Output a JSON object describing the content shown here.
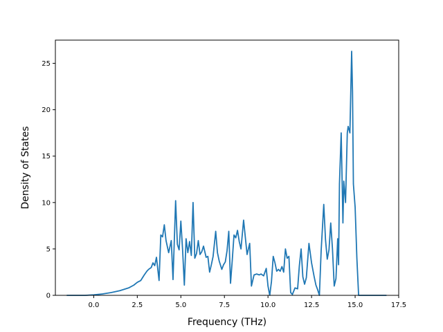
{
  "chart_data": {
    "type": "line",
    "title": "",
    "xlabel": "Frequency (THz)",
    "ylabel": "Density of States",
    "xlim": [
      -2.2,
      17.5
    ],
    "ylim": [
      0,
      27.5
    ],
    "xticks": [
      0.0,
      2.5,
      5.0,
      7.5,
      10.0,
      12.5,
      15.0,
      17.5
    ],
    "xtick_labels": [
      "0.0",
      "2.5",
      "5.0",
      "7.5",
      "10.0",
      "12.5",
      "15.0",
      "17.5"
    ],
    "yticks": [
      0,
      5,
      10,
      15,
      20,
      25
    ],
    "ytick_labels": [
      "0",
      "5",
      "10",
      "15",
      "20",
      "25"
    ],
    "grid": false,
    "legend": "none",
    "series": [
      {
        "color": "#1f77b4",
        "x": [
          -1.55,
          -0.5,
          0.0,
          0.5,
          1.0,
          1.5,
          2.0,
          2.3,
          2.5,
          2.7,
          2.9,
          3.05,
          3.15,
          3.3,
          3.4,
          3.5,
          3.6,
          3.75,
          3.85,
          3.95,
          4.05,
          4.15,
          4.3,
          4.45,
          4.55,
          4.7,
          4.8,
          4.9,
          5.0,
          5.1,
          5.2,
          5.3,
          5.4,
          5.5,
          5.6,
          5.7,
          5.8,
          5.9,
          6.0,
          6.1,
          6.2,
          6.3,
          6.45,
          6.55,
          6.65,
          6.75,
          6.85,
          7.0,
          7.1,
          7.2,
          7.35,
          7.45,
          7.55,
          7.65,
          7.75,
          7.85,
          7.95,
          8.05,
          8.15,
          8.25,
          8.35,
          8.45,
          8.6,
          8.8,
          8.95,
          9.05,
          9.2,
          9.35,
          9.5,
          9.6,
          9.75,
          9.9,
          10.0,
          10.1,
          10.2,
          10.3,
          10.4,
          10.5,
          10.6,
          10.7,
          10.8,
          10.9,
          11.0,
          11.1,
          11.2,
          11.3,
          11.4,
          11.55,
          11.7,
          11.8,
          11.9,
          12.0,
          12.1,
          12.2,
          12.35,
          12.5,
          12.65,
          12.75,
          12.85,
          12.95,
          13.05,
          13.2,
          13.3,
          13.4,
          13.5,
          13.6,
          13.7,
          13.8,
          13.9,
          14.0,
          14.05,
          14.1,
          14.2,
          14.3,
          14.35,
          14.45,
          14.55,
          14.6,
          14.7,
          14.8,
          14.85,
          14.9,
          15.0,
          15.1,
          15.2,
          15.3,
          15.4,
          16.0,
          16.8
        ],
        "y": [
          0,
          0,
          0.05,
          0.15,
          0.3,
          0.5,
          0.8,
          1.1,
          1.4,
          1.6,
          2.2,
          2.6,
          2.8,
          3.0,
          3.5,
          3.2,
          4.1,
          1.6,
          6.5,
          6.3,
          7.6,
          5.9,
          4.6,
          5.9,
          1.7,
          10.2,
          5.5,
          4.9,
          8.0,
          4.9,
          1.1,
          6.1,
          4.6,
          5.8,
          4.3,
          10.0,
          4.0,
          4.5,
          5.9,
          4.4,
          4.7,
          5.3,
          4.1,
          4.2,
          2.5,
          3.3,
          4.2,
          6.9,
          4.6,
          3.7,
          2.8,
          3.3,
          3.6,
          4.8,
          6.9,
          1.3,
          3.8,
          6.5,
          6.2,
          7.0,
          5.8,
          5.0,
          8.1,
          4.4,
          5.6,
          1.0,
          2.2,
          2.3,
          2.2,
          2.3,
          2.1,
          2.9,
          1.0,
          0.0,
          1.5,
          4.2,
          3.5,
          2.6,
          2.8,
          2.6,
          3.1,
          2.5,
          5.0,
          4.0,
          4.2,
          0.3,
          0.1,
          0.8,
          0.7,
          3.2,
          5.0,
          2.0,
          1.2,
          1.9,
          5.6,
          3.5,
          2.0,
          1.1,
          0.6,
          0.0,
          4.8,
          9.8,
          6.0,
          3.9,
          4.9,
          7.8,
          5.0,
          1.0,
          1.8,
          6.1,
          3.3,
          12.0,
          17.5,
          7.8,
          12.3,
          10.0,
          17.5,
          18.2,
          17.5,
          26.3,
          22.0,
          12.0,
          9.5,
          4.0,
          0.0,
          0.0,
          0.0,
          0.0,
          0.0
        ]
      }
    ]
  }
}
